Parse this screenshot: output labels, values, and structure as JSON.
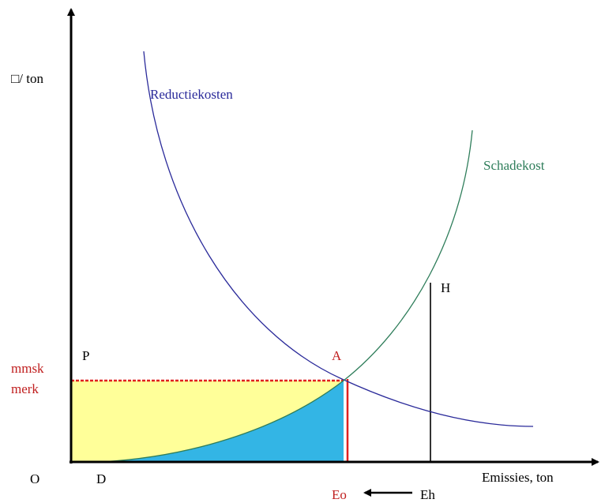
{
  "y_axis_label": "□/ ton",
  "x_axis_label": "Emissies, ton",
  "curves": {
    "reduction": "Reductiekosten",
    "damage": "Schadekost"
  },
  "points": {
    "origin": "O",
    "d": "D",
    "p": "P",
    "a": "A",
    "h": "H",
    "eo": "Eo",
    "eh": "Eh"
  },
  "price_label": [
    "mmsk",
    "merk"
  ]
}
